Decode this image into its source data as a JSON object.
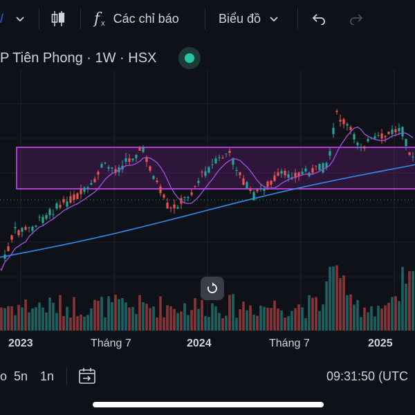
{
  "toolbar": {
    "indicators_label": "Các chỉ báo",
    "chart_type_label": "Biểu đồ"
  },
  "legend": {
    "title": "P Tiên Phong · 1W · HSX"
  },
  "x_axis": {
    "labels": [
      "2023",
      "Tháng 7",
      "2024",
      "Tháng 7",
      "2025"
    ]
  },
  "bottom": {
    "range_partial": "o",
    "range_5y": "5n",
    "range_1y": "1n",
    "clock": "09:31:50 (UTC"
  },
  "colors": {
    "up": "#26a69a",
    "down": "#ef5350",
    "ma_long": "#2f8ff0",
    "ma_short": "#9c4fd6",
    "zone": "#b03cd6"
  }
}
